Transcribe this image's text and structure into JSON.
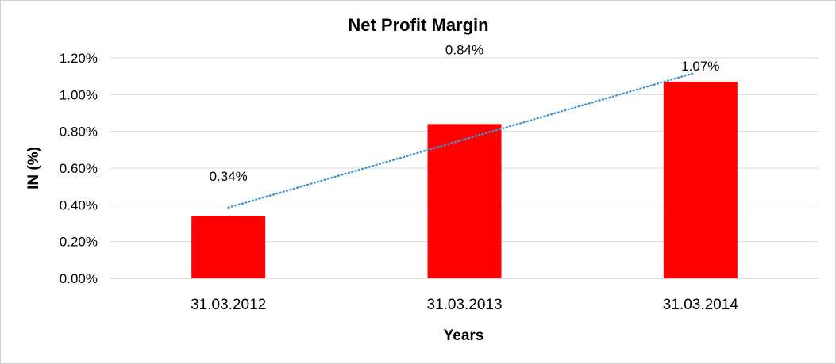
{
  "chart_data": {
    "type": "bar",
    "title": "Net Profit Margin",
    "xlabel": "Years",
    "ylabel": "IN (%)",
    "categories": [
      "31.03.2012",
      "31.03.2013",
      "31.03.2014"
    ],
    "values": [
      0.34,
      0.84,
      1.07
    ],
    "data_labels": [
      "0.34%",
      "0.84%",
      "1.07%"
    ],
    "ylim": [
      0,
      1.2
    ],
    "yticks": [
      0,
      0.2,
      0.4,
      0.6,
      0.8,
      1.0,
      1.2
    ],
    "ytick_labels": [
      "0.00%",
      "0.20%",
      "0.40%",
      "0.60%",
      "0.80%",
      "1.00%",
      "1.20%"
    ],
    "grid": true,
    "legend": "none",
    "trendline": {
      "type": "linear",
      "style": "dotted",
      "color": "#4a90c8"
    },
    "colors": {
      "bar": "#ff0000",
      "grid": "#d9d9d9",
      "axis": "#bfbfbf"
    }
  }
}
